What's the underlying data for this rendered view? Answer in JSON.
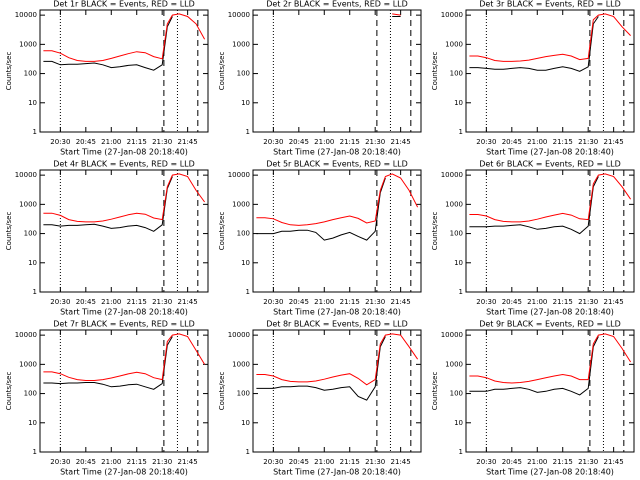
{
  "chart_data": [
    {
      "type": "line",
      "title": "Det 1r BLACK = Events, RED = LLD",
      "xlabel": "Start Time (27-Jan-08 20:18:40)",
      "ylabel": "Counts/sec",
      "ylog": true,
      "x": [
        "20:20",
        "20:25",
        "20:30",
        "20:35",
        "20:40",
        "20:45",
        "20:50",
        "20:55",
        "21:00",
        "21:05",
        "21:10",
        "21:15",
        "21:20",
        "21:25",
        "21:30",
        "21:33",
        "21:36",
        "21:40",
        "21:45",
        "21:50",
        "21:55"
      ],
      "xlim": [
        "20:18",
        "21:57"
      ],
      "xticks": [
        "20:30",
        "20:45",
        "21:00",
        "21:15",
        "21:30",
        "21:45"
      ],
      "ylim": [
        1,
        15000
      ],
      "yticks": [
        1,
        10,
        100,
        1000,
        10000
      ],
      "vlines": [
        {
          "x": "20:30",
          "style": "dotted"
        },
        {
          "x": "21:31",
          "style": "dashed"
        },
        {
          "x": "21:39",
          "style": "dotted"
        },
        {
          "x": "21:51",
          "style": "dashed"
        }
      ],
      "series": [
        {
          "color": "#000000",
          "values": [
            260,
            260,
            200,
            210,
            210,
            220,
            230,
            200,
            160,
            170,
            190,
            200,
            160,
            130,
            200,
            4000,
            9000,
            null,
            null,
            null,
            null
          ]
        },
        {
          "color": "#ff0000",
          "values": [
            600,
            600,
            500,
            350,
            280,
            260,
            260,
            280,
            330,
            400,
            480,
            560,
            520,
            380,
            320,
            5000,
            10000,
            11000,
            9000,
            5000,
            1500
          ]
        }
      ]
    },
    {
      "type": "line",
      "title": "Det 2r BLACK = Events, RED = LLD",
      "xlabel": "Start Time (27-Jan-08 20:18:40)",
      "ylabel": "Counts/sec",
      "ylog": true,
      "x": [
        "20:20",
        "20:25",
        "20:30",
        "20:35",
        "20:40",
        "20:45",
        "20:50",
        "20:55",
        "21:00",
        "21:05",
        "21:10",
        "21:15",
        "21:20",
        "21:25",
        "21:30",
        "21:33",
        "21:36",
        "21:40",
        "21:45",
        "21:50",
        "21:55"
      ],
      "xlim": [
        "20:18",
        "21:57"
      ],
      "xticks": [
        "20:30",
        "20:45",
        "21:00",
        "21:15",
        "21:30",
        "21:45"
      ],
      "ylim": [
        1,
        15000
      ],
      "yticks": [
        1,
        10,
        100,
        1000,
        10000
      ],
      "vlines": [
        {
          "x": "20:30",
          "style": "dotted"
        },
        {
          "x": "21:31",
          "style": "dashed"
        },
        {
          "x": "21:39",
          "style": "dotted"
        },
        {
          "x": "21:51",
          "style": "dashed"
        }
      ],
      "series": [
        {
          "color": "#000000",
          "values": [
            null,
            null,
            null,
            null,
            null,
            null,
            null,
            null,
            null,
            null,
            null,
            null,
            null,
            null,
            null,
            null,
            null,
            9000,
            9000,
            null,
            null
          ]
        },
        {
          "color": "#ff0000",
          "values": [
            null,
            null,
            null,
            null,
            null,
            null,
            null,
            null,
            null,
            null,
            null,
            null,
            null,
            null,
            null,
            null,
            null,
            11000,
            10000,
            null,
            null
          ]
        }
      ]
    },
    {
      "type": "line",
      "title": "Det 3r BLACK = Events, RED = LLD",
      "xlabel": "Start Time (27-Jan-08 20:18:40)",
      "ylabel": "Counts/sec",
      "ylog": true,
      "x": [
        "20:20",
        "20:25",
        "20:30",
        "20:35",
        "20:40",
        "20:45",
        "20:50",
        "20:55",
        "21:00",
        "21:05",
        "21:10",
        "21:15",
        "21:20",
        "21:25",
        "21:30",
        "21:33",
        "21:36",
        "21:40",
        "21:45",
        "21:50",
        "21:55"
      ],
      "xlim": [
        "20:18",
        "21:57"
      ],
      "xticks": [
        "20:30",
        "20:45",
        "21:00",
        "21:15",
        "21:30",
        "21:45"
      ],
      "ylim": [
        1,
        15000
      ],
      "yticks": [
        1,
        10,
        100,
        1000,
        10000
      ],
      "vlines": [
        {
          "x": "20:30",
          "style": "dotted"
        },
        {
          "x": "21:31",
          "style": "dashed"
        },
        {
          "x": "21:39",
          "style": "dotted"
        },
        {
          "x": "21:51",
          "style": "dashed"
        }
      ],
      "series": [
        {
          "color": "#000000",
          "values": [
            160,
            160,
            150,
            140,
            140,
            150,
            160,
            150,
            130,
            130,
            150,
            170,
            150,
            120,
            170,
            5000,
            9000,
            null,
            null,
            null,
            null
          ]
        },
        {
          "color": "#ff0000",
          "values": [
            400,
            400,
            350,
            280,
            260,
            260,
            270,
            290,
            330,
            380,
            420,
            460,
            400,
            300,
            330,
            7000,
            10000,
            11000,
            9000,
            4000,
            2000
          ]
        }
      ]
    },
    {
      "type": "line",
      "title": "Det 4r BLACK = Events, RED = LLD",
      "xlabel": "Start Time (27-Jan-08 20:18:40)",
      "ylabel": "Counts/sec",
      "ylog": true,
      "x": [
        "20:20",
        "20:25",
        "20:30",
        "20:35",
        "20:40",
        "20:45",
        "20:50",
        "20:55",
        "21:00",
        "21:05",
        "21:10",
        "21:15",
        "21:20",
        "21:25",
        "21:30",
        "21:33",
        "21:36",
        "21:40",
        "21:45",
        "21:50",
        "21:55"
      ],
      "xlim": [
        "20:18",
        "21:57"
      ],
      "xticks": [
        "20:30",
        "20:45",
        "21:00",
        "21:15",
        "21:30",
        "21:45"
      ],
      "ylim": [
        1,
        15000
      ],
      "yticks": [
        1,
        10,
        100,
        1000,
        10000
      ],
      "vlines": [
        {
          "x": "20:30",
          "style": "dotted"
        },
        {
          "x": "21:31",
          "style": "dashed"
        },
        {
          "x": "21:39",
          "style": "dotted"
        },
        {
          "x": "21:51",
          "style": "dashed"
        }
      ],
      "series": [
        {
          "color": "#000000",
          "values": [
            200,
            200,
            180,
            190,
            190,
            200,
            210,
            180,
            150,
            160,
            180,
            190,
            160,
            120,
            200,
            3500,
            9000,
            null,
            null,
            null,
            null
          ]
        },
        {
          "color": "#ff0000",
          "values": [
            500,
            500,
            420,
            300,
            260,
            250,
            250,
            270,
            310,
            370,
            440,
            500,
            460,
            340,
            300,
            4000,
            10000,
            11000,
            9000,
            3000,
            1200
          ]
        }
      ]
    },
    {
      "type": "line",
      "title": "Det 5r BLACK = Events, RED = LLD",
      "xlabel": "Start Time (27-Jan-08 20:18:40)",
      "ylabel": "Counts/sec",
      "ylog": true,
      "x": [
        "20:20",
        "20:25",
        "20:30",
        "20:35",
        "20:40",
        "20:45",
        "20:50",
        "20:55",
        "21:00",
        "21:05",
        "21:10",
        "21:15",
        "21:20",
        "21:25",
        "21:30",
        "21:33",
        "21:36",
        "21:40",
        "21:45",
        "21:50",
        "21:55"
      ],
      "xlim": [
        "20:18",
        "21:57"
      ],
      "xticks": [
        "20:30",
        "20:45",
        "21:00",
        "21:15",
        "21:30",
        "21:45"
      ],
      "ylim": [
        1,
        15000
      ],
      "yticks": [
        1,
        10,
        100,
        1000,
        10000
      ],
      "vlines": [
        {
          "x": "20:30",
          "style": "dotted"
        },
        {
          "x": "21:31",
          "style": "dashed"
        },
        {
          "x": "21:39",
          "style": "dotted"
        },
        {
          "x": "21:51",
          "style": "dashed"
        }
      ],
      "series": [
        {
          "color": "#000000",
          "values": [
            100,
            100,
            100,
            120,
            120,
            130,
            130,
            110,
            60,
            70,
            90,
            110,
            80,
            60,
            120,
            2500,
            8000,
            null,
            null,
            null,
            null
          ]
        },
        {
          "color": "#ff0000",
          "values": [
            350,
            350,
            320,
            240,
            200,
            190,
            200,
            220,
            250,
            300,
            350,
            400,
            330,
            230,
            270,
            3000,
            9000,
            11000,
            8000,
            3000,
            800
          ]
        }
      ]
    },
    {
      "type": "line",
      "title": "Det 6r BLACK = Events, RED = LLD",
      "xlabel": "Start Time (27-Jan-08 20:18:40)",
      "ylabel": "Counts/sec",
      "ylog": true,
      "x": [
        "20:20",
        "20:25",
        "20:30",
        "20:35",
        "20:40",
        "20:45",
        "20:50",
        "20:55",
        "21:00",
        "21:05",
        "21:10",
        "21:15",
        "21:20",
        "21:25",
        "21:30",
        "21:33",
        "21:36",
        "21:40",
        "21:45",
        "21:50",
        "21:55"
      ],
      "xlim": [
        "20:18",
        "21:57"
      ],
      "xticks": [
        "20:30",
        "20:45",
        "21:00",
        "21:15",
        "21:30",
        "21:45"
      ],
      "ylim": [
        1,
        15000
      ],
      "yticks": [
        1,
        10,
        100,
        1000,
        10000
      ],
      "vlines": [
        {
          "x": "20:30",
          "style": "dotted"
        },
        {
          "x": "21:31",
          "style": "dashed"
        },
        {
          "x": "21:39",
          "style": "dotted"
        },
        {
          "x": "21:51",
          "style": "dashed"
        }
      ],
      "series": [
        {
          "color": "#000000",
          "values": [
            170,
            170,
            170,
            180,
            180,
            190,
            200,
            170,
            140,
            150,
            170,
            180,
            140,
            100,
            180,
            4000,
            9000,
            null,
            null,
            null,
            null
          ]
        },
        {
          "color": "#ff0000",
          "values": [
            450,
            450,
            400,
            300,
            260,
            250,
            250,
            270,
            310,
            370,
            430,
            490,
            430,
            320,
            300,
            5000,
            10000,
            11000,
            9000,
            4000,
            1500
          ]
        }
      ]
    },
    {
      "type": "line",
      "title": "Det 7r BLACK = Events, RED = LLD",
      "xlabel": "Start Time (27-Jan-08 20:18:40)",
      "ylabel": "Counts/sec",
      "ylog": true,
      "x": [
        "20:20",
        "20:25",
        "20:30",
        "20:35",
        "20:40",
        "20:45",
        "20:50",
        "20:55",
        "21:00",
        "21:05",
        "21:10",
        "21:15",
        "21:20",
        "21:25",
        "21:30",
        "21:33",
        "21:36",
        "21:40",
        "21:45",
        "21:50",
        "21:55"
      ],
      "xlim": [
        "20:18",
        "21:57"
      ],
      "xticks": [
        "20:30",
        "20:45",
        "21:00",
        "21:15",
        "21:30",
        "21:45"
      ],
      "ylim": [
        1,
        15000
      ],
      "yticks": [
        1,
        10,
        100,
        1000,
        10000
      ],
      "vlines": [
        {
          "x": "20:30",
          "style": "dotted"
        },
        {
          "x": "21:31",
          "style": "dashed"
        },
        {
          "x": "21:39",
          "style": "dotted"
        },
        {
          "x": "21:51",
          "style": "dashed"
        }
      ],
      "series": [
        {
          "color": "#000000",
          "values": [
            230,
            230,
            220,
            230,
            230,
            240,
            240,
            210,
            170,
            180,
            200,
            210,
            170,
            140,
            220,
            4500,
            9000,
            null,
            null,
            null,
            null
          ]
        },
        {
          "color": "#ff0000",
          "values": [
            550,
            550,
            480,
            360,
            300,
            280,
            280,
            300,
            340,
            400,
            470,
            540,
            480,
            350,
            300,
            6000,
            10000,
            11000,
            9000,
            3000,
            1000
          ]
        }
      ]
    },
    {
      "type": "line",
      "title": "Det 8r BLACK = Events, RED = LLD",
      "xlabel": "Start Time (27-Jan-08 20:18:40)",
      "ylabel": "Counts/sec",
      "ylog": true,
      "x": [
        "20:20",
        "20:25",
        "20:30",
        "20:35",
        "20:40",
        "20:45",
        "20:50",
        "20:55",
        "21:00",
        "21:05",
        "21:10",
        "21:15",
        "21:20",
        "21:25",
        "21:30",
        "21:33",
        "21:36",
        "21:40",
        "21:45",
        "21:50",
        "21:55"
      ],
      "xlim": [
        "20:18",
        "21:57"
      ],
      "xticks": [
        "20:30",
        "20:45",
        "21:00",
        "21:15",
        "21:30",
        "21:45"
      ],
      "ylim": [
        1,
        15000
      ],
      "yticks": [
        1,
        10,
        100,
        1000,
        10000
      ],
      "vlines": [
        {
          "x": "20:30",
          "style": "dotted"
        },
        {
          "x": "21:31",
          "style": "dashed"
        },
        {
          "x": "21:39",
          "style": "dotted"
        },
        {
          "x": "21:51",
          "style": "dashed"
        }
      ],
      "series": [
        {
          "color": "#000000",
          "values": [
            150,
            150,
            150,
            170,
            170,
            180,
            180,
            160,
            130,
            140,
            160,
            170,
            80,
            60,
            170,
            4000,
            9000,
            null,
            null,
            null,
            null
          ]
        },
        {
          "color": "#ff0000",
          "values": [
            450,
            450,
            400,
            300,
            260,
            250,
            250,
            270,
            310,
            370,
            430,
            480,
            330,
            200,
            300,
            5000,
            10000,
            11000,
            10000,
            4000,
            1500
          ]
        }
      ]
    },
    {
      "type": "line",
      "title": "Det 9r BLACK = Events, RED = LLD",
      "xlabel": "Start Time (27-Jan-08 20:18:40)",
      "ylabel": "Counts/sec",
      "ylog": true,
      "x": [
        "20:20",
        "20:25",
        "20:30",
        "20:35",
        "20:40",
        "20:45",
        "20:50",
        "20:55",
        "21:00",
        "21:05",
        "21:10",
        "21:15",
        "21:20",
        "21:25",
        "21:30",
        "21:33",
        "21:36",
        "21:40",
        "21:45",
        "21:50",
        "21:55"
      ],
      "xlim": [
        "20:18",
        "21:57"
      ],
      "xticks": [
        "20:30",
        "20:45",
        "21:00",
        "21:15",
        "21:30",
        "21:45"
      ],
      "ylim": [
        1,
        15000
      ],
      "yticks": [
        1,
        10,
        100,
        1000,
        10000
      ],
      "vlines": [
        {
          "x": "20:30",
          "style": "dotted"
        },
        {
          "x": "21:31",
          "style": "dashed"
        },
        {
          "x": "21:39",
          "style": "dotted"
        },
        {
          "x": "21:51",
          "style": "dashed"
        }
      ],
      "series": [
        {
          "color": "#000000",
          "values": [
            120,
            120,
            120,
            140,
            140,
            150,
            160,
            140,
            110,
            120,
            140,
            150,
            120,
            90,
            150,
            4000,
            9000,
            null,
            null,
            null,
            null
          ]
        },
        {
          "color": "#ff0000",
          "values": [
            400,
            400,
            350,
            270,
            240,
            230,
            240,
            260,
            300,
            350,
            400,
            450,
            400,
            300,
            300,
            5000,
            10000,
            11000,
            9000,
            3500,
            1200
          ]
        }
      ]
    }
  ]
}
